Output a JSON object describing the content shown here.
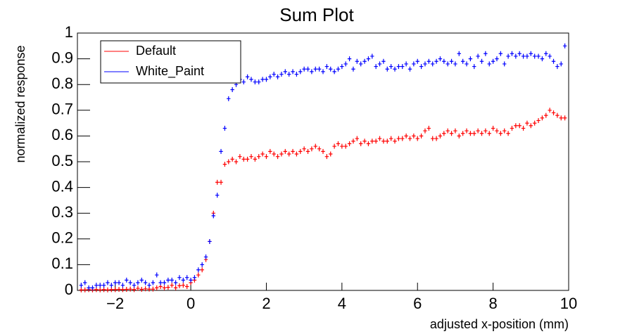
{
  "chart_data": {
    "type": "scatter",
    "title": "Sum Plot",
    "x_label": "adjusted x-position (mm)",
    "y_label": "normalized response",
    "x": [
      -2.9,
      -2.8,
      -2.7,
      -2.6,
      -2.5,
      -2.4,
      -2.3,
      -2.2,
      -2.1,
      -2.0,
      -1.9,
      -1.8,
      -1.7,
      -1.6,
      -1.5,
      -1.4,
      -1.3,
      -1.2,
      -1.1,
      -1.0,
      -0.9,
      -0.8,
      -0.7,
      -0.6,
      -0.5,
      -0.4,
      -0.3,
      -0.2,
      -0.1,
      0.0,
      0.1,
      0.2,
      0.3,
      0.4,
      0.5,
      0.6,
      0.7,
      0.8,
      0.9,
      1.0,
      1.1,
      1.2,
      1.3,
      1.4,
      1.5,
      1.6,
      1.7,
      1.8,
      1.9,
      2.0,
      2.1,
      2.2,
      2.3,
      2.4,
      2.5,
      2.6,
      2.7,
      2.8,
      2.9,
      3.0,
      3.1,
      3.2,
      3.3,
      3.4,
      3.5,
      3.6,
      3.7,
      3.8,
      3.9,
      4.0,
      4.1,
      4.2,
      4.3,
      4.4,
      4.5,
      4.6,
      4.7,
      4.8,
      4.9,
      5.0,
      5.1,
      5.2,
      5.3,
      5.4,
      5.5,
      5.6,
      5.7,
      5.8,
      5.9,
      6.0,
      6.1,
      6.2,
      6.3,
      6.4,
      6.5,
      6.6,
      6.7,
      6.8,
      6.9,
      7.0,
      7.1,
      7.2,
      7.3,
      7.4,
      7.5,
      7.6,
      7.7,
      7.8,
      7.9,
      8.0,
      8.1,
      8.2,
      8.3,
      8.4,
      8.5,
      8.6,
      8.7,
      8.8,
      8.9,
      9.0,
      9.1,
      9.2,
      9.3,
      9.4,
      9.5,
      9.6,
      9.7,
      9.8,
      9.9
    ],
    "series": [
      {
        "name": "Default",
        "color": "#ff0000",
        "values": [
          0.002,
          0.002,
          0.003,
          0.002,
          0.003,
          0.002,
          0.003,
          0.002,
          0.003,
          0.003,
          0.004,
          0.003,
          0.004,
          0.005,
          0.003,
          0.008,
          0.004,
          0.006,
          0.005,
          0.005,
          0.01,
          0.015,
          0.01,
          0.012,
          0.02,
          0.01,
          0.018,
          0.02,
          0.015,
          0.03,
          0.04,
          0.06,
          0.08,
          0.12,
          0.19,
          0.3,
          0.42,
          0.42,
          0.49,
          0.5,
          0.51,
          0.5,
          0.52,
          0.51,
          0.51,
          0.52,
          0.51,
          0.52,
          0.53,
          0.52,
          0.54,
          0.53,
          0.52,
          0.53,
          0.54,
          0.53,
          0.54,
          0.53,
          0.54,
          0.55,
          0.54,
          0.55,
          0.56,
          0.55,
          0.54,
          0.52,
          0.53,
          0.56,
          0.57,
          0.56,
          0.56,
          0.57,
          0.58,
          0.59,
          0.57,
          0.58,
          0.57,
          0.58,
          0.58,
          0.59,
          0.58,
          0.58,
          0.59,
          0.58,
          0.59,
          0.59,
          0.6,
          0.59,
          0.6,
          0.59,
          0.6,
          0.62,
          0.63,
          0.59,
          0.59,
          0.6,
          0.61,
          0.62,
          0.61,
          0.62,
          0.6,
          0.61,
          0.62,
          0.61,
          0.61,
          0.62,
          0.61,
          0.62,
          0.61,
          0.63,
          0.62,
          0.61,
          0.62,
          0.61,
          0.63,
          0.64,
          0.64,
          0.63,
          0.65,
          0.64,
          0.65,
          0.66,
          0.67,
          0.68,
          0.7,
          0.69,
          0.68,
          0.67,
          0.67
        ]
      },
      {
        "name": "White_Paint",
        "color": "#0000ff",
        "values": [
          0.02,
          0.03,
          0.01,
          0.01,
          0.02,
          0.02,
          0.02,
          0.03,
          0.02,
          0.03,
          0.03,
          0.02,
          0.04,
          0.03,
          0.02,
          0.03,
          0.04,
          0.03,
          0.02,
          0.03,
          0.06,
          0.03,
          0.03,
          0.04,
          0.04,
          0.03,
          0.05,
          0.04,
          0.05,
          0.04,
          0.05,
          0.08,
          0.1,
          0.13,
          0.19,
          0.29,
          0.37,
          0.54,
          0.63,
          0.745,
          0.78,
          0.8,
          0.82,
          0.81,
          0.83,
          0.82,
          0.81,
          0.81,
          0.82,
          0.82,
          0.83,
          0.84,
          0.83,
          0.84,
          0.85,
          0.84,
          0.85,
          0.84,
          0.85,
          0.86,
          0.86,
          0.85,
          0.86,
          0.86,
          0.85,
          0.87,
          0.86,
          0.85,
          0.86,
          0.87,
          0.88,
          0.9,
          0.86,
          0.89,
          0.88,
          0.89,
          0.9,
          0.91,
          0.87,
          0.88,
          0.89,
          0.86,
          0.87,
          0.86,
          0.87,
          0.87,
          0.88,
          0.86,
          0.88,
          0.89,
          0.87,
          0.88,
          0.89,
          0.88,
          0.89,
          0.9,
          0.89,
          0.88,
          0.89,
          0.88,
          0.92,
          0.89,
          0.88,
          0.9,
          0.87,
          0.91,
          0.89,
          0.92,
          0.88,
          0.89,
          0.9,
          0.92,
          0.88,
          0.91,
          0.92,
          0.91,
          0.92,
          0.91,
          0.91,
          0.92,
          0.91,
          0.91,
          0.9,
          0.92,
          0.91,
          0.89,
          0.87,
          0.88,
          0.95
        ]
      }
    ],
    "xlim": [
      -3,
      10
    ],
    "ylim": [
      0,
      1
    ],
    "xticks": [
      {
        "value": -2,
        "label": "−2"
      },
      0,
      2,
      4,
      6,
      8,
      10
    ],
    "yticks": [
      0,
      0.1,
      0.2,
      0.3,
      0.4,
      0.5,
      0.6,
      0.7,
      0.8,
      0.9,
      1
    ],
    "legend": "upper left"
  }
}
